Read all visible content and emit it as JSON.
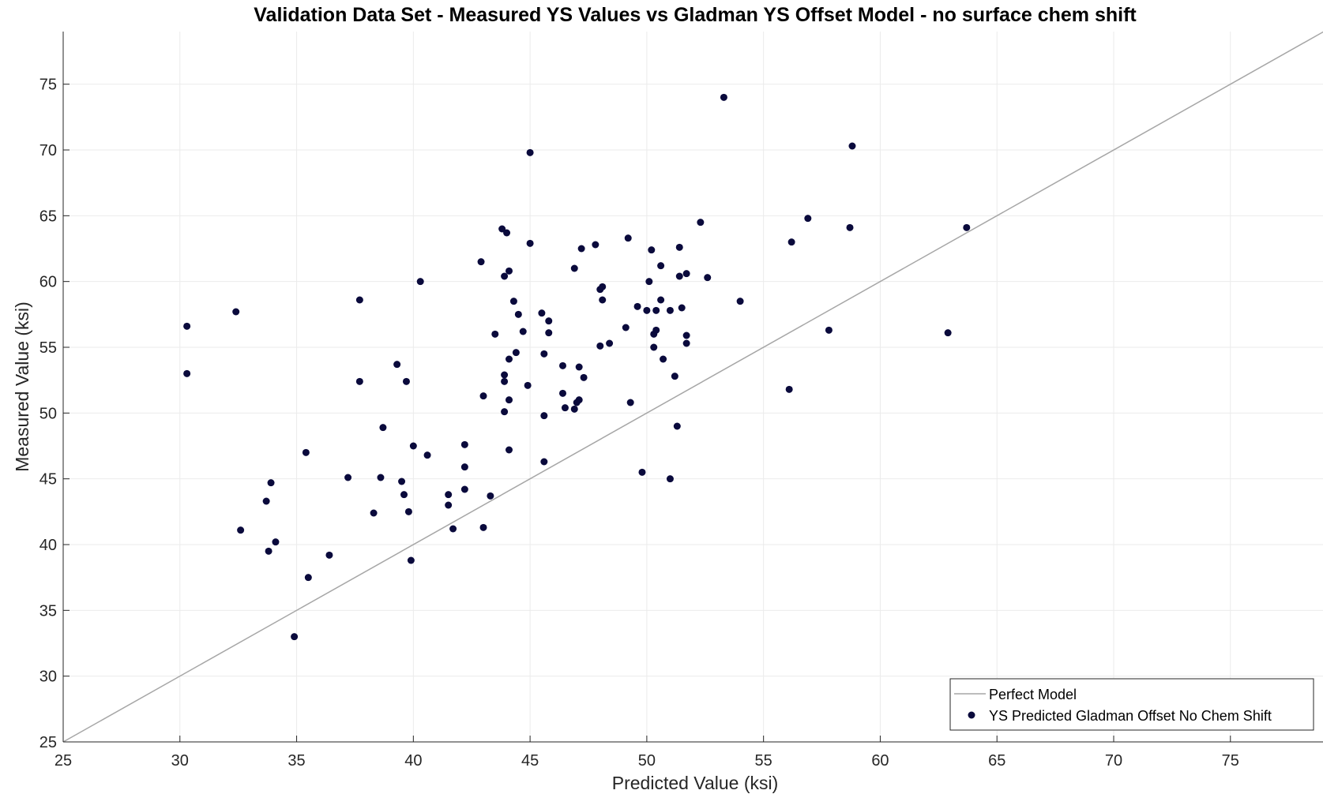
{
  "chart_data": {
    "type": "scatter",
    "title": "Validation Data Set - Measured YS Values vs Gladman YS Offset Model - no surface chem shift",
    "xlabel": "Predicted Value (ksi)",
    "ylabel": "Measured Value (ksi)",
    "xlim": [
      25,
      79
    ],
    "ylim": [
      25,
      79
    ],
    "xticks": [
      25,
      30,
      35,
      40,
      45,
      50,
      55,
      60,
      65,
      70,
      75
    ],
    "yticks": [
      25,
      30,
      35,
      40,
      45,
      50,
      55,
      60,
      65,
      70,
      75
    ],
    "grid": true,
    "legend_position": "bottom-right",
    "colors": {
      "reference": "#a6a6a6",
      "points": "#0a0a3c",
      "grid": "#ebebeb",
      "axis": "#262626"
    },
    "series": [
      {
        "name": "Perfect Model",
        "kind": "line",
        "x": [
          25,
          79
        ],
        "y": [
          25,
          79
        ]
      },
      {
        "name": "YS Predicted Gladman Offset No Chem Shift",
        "kind": "scatter",
        "points": [
          [
            30.3,
            56.6
          ],
          [
            30.3,
            53.0
          ],
          [
            32.4,
            57.7
          ],
          [
            32.6,
            41.1
          ],
          [
            33.7,
            43.3
          ],
          [
            33.8,
            39.5
          ],
          [
            33.9,
            44.7
          ],
          [
            34.1,
            40.2
          ],
          [
            34.9,
            33.0
          ],
          [
            35.4,
            47.0
          ],
          [
            35.5,
            37.5
          ],
          [
            36.4,
            39.2
          ],
          [
            37.2,
            45.1
          ],
          [
            37.7,
            58.6
          ],
          [
            37.7,
            52.4
          ],
          [
            38.3,
            42.4
          ],
          [
            38.6,
            45.1
          ],
          [
            38.7,
            48.9
          ],
          [
            39.3,
            53.7
          ],
          [
            39.5,
            44.8
          ],
          [
            39.6,
            43.8
          ],
          [
            39.7,
            52.4
          ],
          [
            39.8,
            42.5
          ],
          [
            39.9,
            38.8
          ],
          [
            40.0,
            47.5
          ],
          [
            40.3,
            60.0
          ],
          [
            40.6,
            46.8
          ],
          [
            41.5,
            43.8
          ],
          [
            41.5,
            43.0
          ],
          [
            41.7,
            41.2
          ],
          [
            42.2,
            47.6
          ],
          [
            42.2,
            45.9
          ],
          [
            42.2,
            44.2
          ],
          [
            42.9,
            61.5
          ],
          [
            43.0,
            51.3
          ],
          [
            43.0,
            41.3
          ],
          [
            43.3,
            43.7
          ],
          [
            43.5,
            56.0
          ],
          [
            43.8,
            64.0
          ],
          [
            43.9,
            60.4
          ],
          [
            43.9,
            52.9
          ],
          [
            43.9,
            52.4
          ],
          [
            43.9,
            50.1
          ],
          [
            44.0,
            63.7
          ],
          [
            44.1,
            60.8
          ],
          [
            44.1,
            54.1
          ],
          [
            44.1,
            51.0
          ],
          [
            44.1,
            47.2
          ],
          [
            44.3,
            58.5
          ],
          [
            44.4,
            54.6
          ],
          [
            44.5,
            57.5
          ],
          [
            44.7,
            56.2
          ],
          [
            44.9,
            52.1
          ],
          [
            45.0,
            69.8
          ],
          [
            45.0,
            62.9
          ],
          [
            45.5,
            57.6
          ],
          [
            45.6,
            54.5
          ],
          [
            45.6,
            49.8
          ],
          [
            45.6,
            46.3
          ],
          [
            45.8,
            57.0
          ],
          [
            45.8,
            56.1
          ],
          [
            46.4,
            53.6
          ],
          [
            46.4,
            51.5
          ],
          [
            46.5,
            50.4
          ],
          [
            46.9,
            50.3
          ],
          [
            46.9,
            61.0
          ],
          [
            47.0,
            50.8
          ],
          [
            47.1,
            53.5
          ],
          [
            47.1,
            51.0
          ],
          [
            47.2,
            62.5
          ],
          [
            47.3,
            52.7
          ],
          [
            47.8,
            62.8
          ],
          [
            48.0,
            59.4
          ],
          [
            48.0,
            55.1
          ],
          [
            48.1,
            59.6
          ],
          [
            48.1,
            58.6
          ],
          [
            48.4,
            55.3
          ],
          [
            49.1,
            56.5
          ],
          [
            49.2,
            63.3
          ],
          [
            49.3,
            50.8
          ],
          [
            49.6,
            58.1
          ],
          [
            49.8,
            45.5
          ],
          [
            50.0,
            57.8
          ],
          [
            50.1,
            60.0
          ],
          [
            50.2,
            62.4
          ],
          [
            50.3,
            56.0
          ],
          [
            50.3,
            55.0
          ],
          [
            50.4,
            57.8
          ],
          [
            50.4,
            56.3
          ],
          [
            50.6,
            61.2
          ],
          [
            50.6,
            58.6
          ],
          [
            50.7,
            54.1
          ],
          [
            51.0,
            57.8
          ],
          [
            51.0,
            45.0
          ],
          [
            51.2,
            52.8
          ],
          [
            51.3,
            49.0
          ],
          [
            51.4,
            60.4
          ],
          [
            51.4,
            62.6
          ],
          [
            51.5,
            58.0
          ],
          [
            51.7,
            55.9
          ],
          [
            51.7,
            55.3
          ],
          [
            51.7,
            60.6
          ],
          [
            52.3,
            64.5
          ],
          [
            52.6,
            60.3
          ],
          [
            53.3,
            74.0
          ],
          [
            54.0,
            58.5
          ],
          [
            56.1,
            51.8
          ],
          [
            56.2,
            63.0
          ],
          [
            56.9,
            64.8
          ],
          [
            57.8,
            56.3
          ],
          [
            58.7,
            64.1
          ],
          [
            58.8,
            70.3
          ],
          [
            62.9,
            56.1
          ],
          [
            63.7,
            64.1
          ]
        ]
      }
    ]
  }
}
